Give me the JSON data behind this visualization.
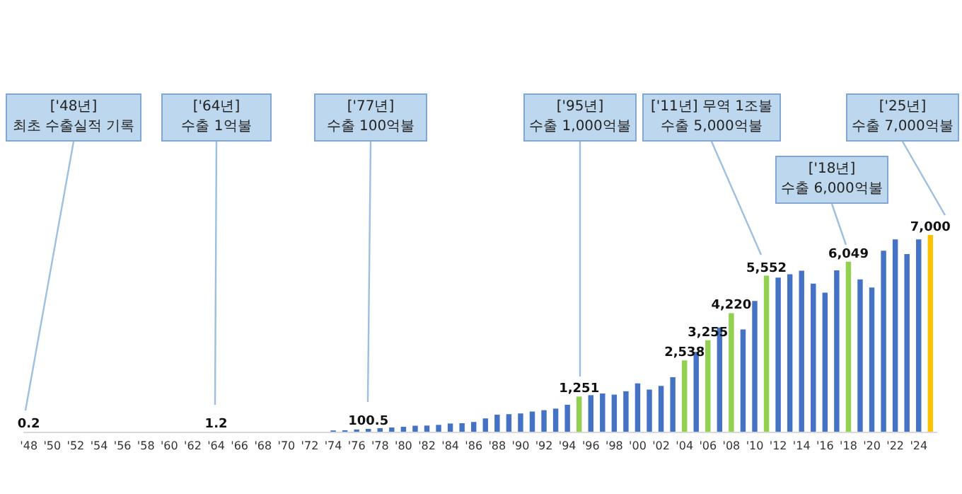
{
  "chart_data": {
    "type": "bar",
    "categories": [
      "'48",
      null,
      "'50",
      null,
      "'52",
      null,
      "'54",
      null,
      "'56",
      null,
      "'58",
      null,
      "'60",
      null,
      "'62",
      null,
      "'64",
      null,
      "'66",
      null,
      "'68",
      null,
      "'70",
      null,
      "'72",
      null,
      "'74",
      null,
      "'76",
      null,
      "'78",
      null,
      "'80",
      null,
      "'82",
      null,
      "'84",
      null,
      "'86",
      null,
      "'88",
      null,
      "'90",
      null,
      "'92",
      null,
      "'94",
      null,
      "'96",
      null,
      "'98",
      null,
      "'00",
      null,
      "'02",
      null,
      "'04",
      null,
      "'06",
      null,
      "'08",
      null,
      "'10",
      null,
      "'12",
      null,
      "'14",
      null,
      "'16",
      null,
      "'18",
      null,
      "'20",
      null,
      "'22",
      null,
      "'24",
      null
    ],
    "values": [
      0.2,
      null,
      null,
      null,
      null,
      null,
      null,
      null,
      null,
      null,
      null,
      null,
      null,
      null,
      null,
      null,
      1.2,
      null,
      null,
      null,
      null,
      null,
      null,
      null,
      null,
      null,
      45,
      51,
      78,
      100.5,
      127,
      151,
      175,
      213,
      219,
      244,
      292,
      303,
      347,
      473,
      607,
      624,
      650,
      718,
      766,
      822,
      960,
      1251,
      1300,
      1360,
      1320,
      1440,
      1720,
      1500,
      1630,
      1940,
      2538,
      2840,
      3255,
      3710,
      4220,
      3640,
      4650,
      5552,
      5480,
      5600,
      5730,
      5270,
      4950,
      5740,
      6049,
      5420,
      5130,
      6440,
      6840,
      6320,
      6840,
      7000
    ],
    "colors": [
      "#4472c4",
      "#4472c4",
      "#4472c4",
      "#4472c4",
      "#4472c4",
      "#4472c4",
      "#4472c4",
      "#4472c4",
      "#4472c4",
      "#4472c4",
      "#4472c4",
      "#4472c4",
      "#4472c4",
      "#4472c4",
      "#4472c4",
      "#4472c4",
      "#4472c4",
      "#4472c4",
      "#4472c4",
      "#4472c4",
      "#4472c4",
      "#4472c4",
      "#4472c4",
      "#4472c4",
      "#4472c4",
      "#4472c4",
      "#4472c4",
      "#4472c4",
      "#4472c4",
      "#4472c4",
      "#4472c4",
      "#4472c4",
      "#4472c4",
      "#4472c4",
      "#4472c4",
      "#4472c4",
      "#4472c4",
      "#4472c4",
      "#4472c4",
      "#4472c4",
      "#4472c4",
      "#4472c4",
      "#4472c4",
      "#4472c4",
      "#4472c4",
      "#4472c4",
      "#4472c4",
      "#92d050",
      "#4472c4",
      "#4472c4",
      "#4472c4",
      "#4472c4",
      "#4472c4",
      "#4472c4",
      "#4472c4",
      "#4472c4",
      "#92d050",
      "#4472c4",
      "#92d050",
      "#4472c4",
      "#92d050",
      "#4472c4",
      "#4472c4",
      "#92d050",
      "#4472c4",
      "#4472c4",
      "#4472c4",
      "#4472c4",
      "#4472c4",
      "#4472c4",
      "#92d050",
      "#4472c4",
      "#4472c4",
      "#4472c4",
      "#4472c4",
      "#4472c4",
      "#4472c4",
      "#ffc000"
    ],
    "value_labels": [
      "0.2",
      null,
      null,
      null,
      null,
      null,
      null,
      null,
      null,
      null,
      null,
      null,
      null,
      null,
      null,
      null,
      "1.2",
      null,
      null,
      null,
      null,
      null,
      null,
      null,
      null,
      null,
      null,
      null,
      null,
      "100.5",
      null,
      null,
      null,
      null,
      null,
      null,
      null,
      null,
      null,
      null,
      null,
      null,
      null,
      null,
      null,
      null,
      null,
      "1,251",
      null,
      null,
      null,
      null,
      null,
      null,
      null,
      null,
      "2,538",
      null,
      "3,255",
      null,
      "4,220",
      null,
      null,
      "5,552",
      null,
      null,
      null,
      null,
      null,
      null,
      "6,049",
      null,
      null,
      null,
      null,
      null,
      null,
      "7,000"
    ],
    "annotations": [
      "['48년]\n최초 수출실적 기록",
      "['64년]\n수출 1억불",
      "['77년]\n수출 100억불",
      "['95년]\n수출 1,000억불",
      "['11년] 무역 1조불\n수출 5,000억불",
      "['18년]\n수출 6,000억불",
      "['25년]\n수출 7,000억불"
    ],
    "grid": false
  }
}
